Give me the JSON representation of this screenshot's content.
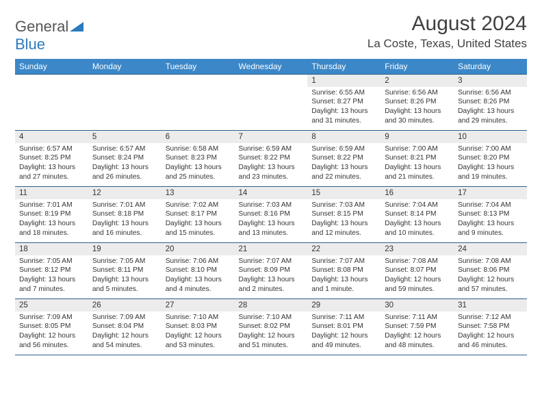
{
  "logo": {
    "word1": "General",
    "word2": "Blue"
  },
  "title": "August 2024",
  "location": "La Coste, Texas, United States",
  "header_bg": "#3b87c8",
  "header_fg": "#ffffff",
  "rule_color": "#2c5f8d",
  "daynum_bg": "#ececec",
  "dayNames": [
    "Sunday",
    "Monday",
    "Tuesday",
    "Wednesday",
    "Thursday",
    "Friday",
    "Saturday"
  ],
  "weeks": [
    [
      null,
      null,
      null,
      null,
      {
        "n": "1",
        "sr": "6:55 AM",
        "ss": "8:27 PM",
        "dl": "13 hours and 31 minutes."
      },
      {
        "n": "2",
        "sr": "6:56 AM",
        "ss": "8:26 PM",
        "dl": "13 hours and 30 minutes."
      },
      {
        "n": "3",
        "sr": "6:56 AM",
        "ss": "8:26 PM",
        "dl": "13 hours and 29 minutes."
      }
    ],
    [
      {
        "n": "4",
        "sr": "6:57 AM",
        "ss": "8:25 PM",
        "dl": "13 hours and 27 minutes."
      },
      {
        "n": "5",
        "sr": "6:57 AM",
        "ss": "8:24 PM",
        "dl": "13 hours and 26 minutes."
      },
      {
        "n": "6",
        "sr": "6:58 AM",
        "ss": "8:23 PM",
        "dl": "13 hours and 25 minutes."
      },
      {
        "n": "7",
        "sr": "6:59 AM",
        "ss": "8:22 PM",
        "dl": "13 hours and 23 minutes."
      },
      {
        "n": "8",
        "sr": "6:59 AM",
        "ss": "8:22 PM",
        "dl": "13 hours and 22 minutes."
      },
      {
        "n": "9",
        "sr": "7:00 AM",
        "ss": "8:21 PM",
        "dl": "13 hours and 21 minutes."
      },
      {
        "n": "10",
        "sr": "7:00 AM",
        "ss": "8:20 PM",
        "dl": "13 hours and 19 minutes."
      }
    ],
    [
      {
        "n": "11",
        "sr": "7:01 AM",
        "ss": "8:19 PM",
        "dl": "13 hours and 18 minutes."
      },
      {
        "n": "12",
        "sr": "7:01 AM",
        "ss": "8:18 PM",
        "dl": "13 hours and 16 minutes."
      },
      {
        "n": "13",
        "sr": "7:02 AM",
        "ss": "8:17 PM",
        "dl": "13 hours and 15 minutes."
      },
      {
        "n": "14",
        "sr": "7:03 AM",
        "ss": "8:16 PM",
        "dl": "13 hours and 13 minutes."
      },
      {
        "n": "15",
        "sr": "7:03 AM",
        "ss": "8:15 PM",
        "dl": "13 hours and 12 minutes."
      },
      {
        "n": "16",
        "sr": "7:04 AM",
        "ss": "8:14 PM",
        "dl": "13 hours and 10 minutes."
      },
      {
        "n": "17",
        "sr": "7:04 AM",
        "ss": "8:13 PM",
        "dl": "13 hours and 9 minutes."
      }
    ],
    [
      {
        "n": "18",
        "sr": "7:05 AM",
        "ss": "8:12 PM",
        "dl": "13 hours and 7 minutes."
      },
      {
        "n": "19",
        "sr": "7:05 AM",
        "ss": "8:11 PM",
        "dl": "13 hours and 5 minutes."
      },
      {
        "n": "20",
        "sr": "7:06 AM",
        "ss": "8:10 PM",
        "dl": "13 hours and 4 minutes."
      },
      {
        "n": "21",
        "sr": "7:07 AM",
        "ss": "8:09 PM",
        "dl": "13 hours and 2 minutes."
      },
      {
        "n": "22",
        "sr": "7:07 AM",
        "ss": "8:08 PM",
        "dl": "13 hours and 1 minute."
      },
      {
        "n": "23",
        "sr": "7:08 AM",
        "ss": "8:07 PM",
        "dl": "12 hours and 59 minutes."
      },
      {
        "n": "24",
        "sr": "7:08 AM",
        "ss": "8:06 PM",
        "dl": "12 hours and 57 minutes."
      }
    ],
    [
      {
        "n": "25",
        "sr": "7:09 AM",
        "ss": "8:05 PM",
        "dl": "12 hours and 56 minutes."
      },
      {
        "n": "26",
        "sr": "7:09 AM",
        "ss": "8:04 PM",
        "dl": "12 hours and 54 minutes."
      },
      {
        "n": "27",
        "sr": "7:10 AM",
        "ss": "8:03 PM",
        "dl": "12 hours and 53 minutes."
      },
      {
        "n": "28",
        "sr": "7:10 AM",
        "ss": "8:02 PM",
        "dl": "12 hours and 51 minutes."
      },
      {
        "n": "29",
        "sr": "7:11 AM",
        "ss": "8:01 PM",
        "dl": "12 hours and 49 minutes."
      },
      {
        "n": "30",
        "sr": "7:11 AM",
        "ss": "7:59 PM",
        "dl": "12 hours and 48 minutes."
      },
      {
        "n": "31",
        "sr": "7:12 AM",
        "ss": "7:58 PM",
        "dl": "12 hours and 46 minutes."
      }
    ]
  ],
  "labels": {
    "sunrise": "Sunrise:",
    "sunset": "Sunset:",
    "daylight": "Daylight:"
  }
}
